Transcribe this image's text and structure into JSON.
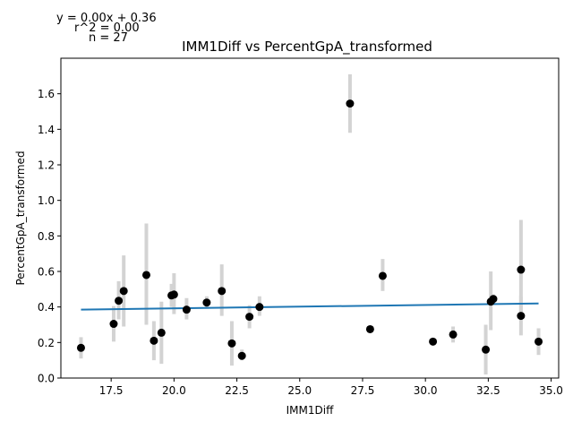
{
  "annotations": {
    "equation": "y = 0.00x + 0.36",
    "r2": "r^2 = 0.00",
    "n": "n = 27"
  },
  "chart_data": {
    "type": "scatter",
    "title": "IMM1Diff vs PercentGpA_transformed",
    "xlabel": "IMM1Diff",
    "ylabel": "PercentGpA_transformed",
    "xlim": [
      15.5,
      35.3
    ],
    "ylim": [
      0.0,
      1.8
    ],
    "xticks": [
      17.5,
      20.0,
      22.5,
      25.0,
      27.5,
      30.0,
      32.5,
      35.0
    ],
    "xtick_labels": [
      "17.5",
      "20.0",
      "22.5",
      "25.0",
      "27.5",
      "30.0",
      "32.5",
      "35.0"
    ],
    "yticks": [
      0.0,
      0.2,
      0.4,
      0.6,
      0.8,
      1.0,
      1.2,
      1.4,
      1.6
    ],
    "ytick_labels": [
      "0.0",
      "0.2",
      "0.4",
      "0.6",
      "0.8",
      "1.0",
      "1.2",
      "1.4",
      "1.6"
    ],
    "grid": false,
    "colors": {
      "points": "#000000",
      "errorbars": "#d3d3d3",
      "fit": "#1f77b4"
    },
    "fit_line": {
      "x": [
        16.3,
        34.5
      ],
      "y": [
        0.385,
        0.42
      ]
    },
    "points": [
      {
        "x": 16.3,
        "y": 0.17,
        "lo": 0.11,
        "hi": 0.23
      },
      {
        "x": 17.6,
        "y": 0.305,
        "lo": 0.205,
        "hi": 0.405
      },
      {
        "x": 17.8,
        "y": 0.435,
        "lo": 0.33,
        "hi": 0.545
      },
      {
        "x": 18.0,
        "y": 0.49,
        "lo": 0.29,
        "hi": 0.69
      },
      {
        "x": 18.9,
        "y": 0.58,
        "lo": 0.3,
        "hi": 0.87
      },
      {
        "x": 19.2,
        "y": 0.21,
        "lo": 0.1,
        "hi": 0.32
      },
      {
        "x": 19.5,
        "y": 0.255,
        "lo": 0.08,
        "hi": 0.43
      },
      {
        "x": 19.9,
        "y": 0.465,
        "lo": 0.4,
        "hi": 0.53
      },
      {
        "x": 20.0,
        "y": 0.47,
        "lo": 0.36,
        "hi": 0.59
      },
      {
        "x": 20.5,
        "y": 0.385,
        "lo": 0.33,
        "hi": 0.45
      },
      {
        "x": 21.3,
        "y": 0.425,
        "lo": 0.39,
        "hi": 0.46
      },
      {
        "x": 21.9,
        "y": 0.49,
        "lo": 0.35,
        "hi": 0.64
      },
      {
        "x": 22.3,
        "y": 0.195,
        "lo": 0.07,
        "hi": 0.32
      },
      {
        "x": 22.7,
        "y": 0.125,
        "lo": 0.1,
        "hi": 0.16
      },
      {
        "x": 23.0,
        "y": 0.345,
        "lo": 0.28,
        "hi": 0.41
      },
      {
        "x": 23.4,
        "y": 0.4,
        "lo": 0.35,
        "hi": 0.46
      },
      {
        "x": 27.0,
        "y": 1.545,
        "lo": 1.38,
        "hi": 1.71
      },
      {
        "x": 27.8,
        "y": 0.275,
        "lo": 0.26,
        "hi": 0.29
      },
      {
        "x": 28.3,
        "y": 0.575,
        "lo": 0.49,
        "hi": 0.67
      },
      {
        "x": 30.3,
        "y": 0.205,
        "lo": 0.19,
        "hi": 0.22
      },
      {
        "x": 31.1,
        "y": 0.245,
        "lo": 0.2,
        "hi": 0.29
      },
      {
        "x": 32.4,
        "y": 0.16,
        "lo": 0.02,
        "hi": 0.3
      },
      {
        "x": 32.6,
        "y": 0.43,
        "lo": 0.27,
        "hi": 0.6
      },
      {
        "x": 32.7,
        "y": 0.445,
        "lo": 0.42,
        "hi": 0.47
      },
      {
        "x": 33.8,
        "y": 0.61,
        "lo": 0.33,
        "hi": 0.89
      },
      {
        "x": 33.8,
        "y": 0.35,
        "lo": 0.24,
        "hi": 0.46
      },
      {
        "x": 34.5,
        "y": 0.205,
        "lo": 0.13,
        "hi": 0.28
      }
    ]
  }
}
